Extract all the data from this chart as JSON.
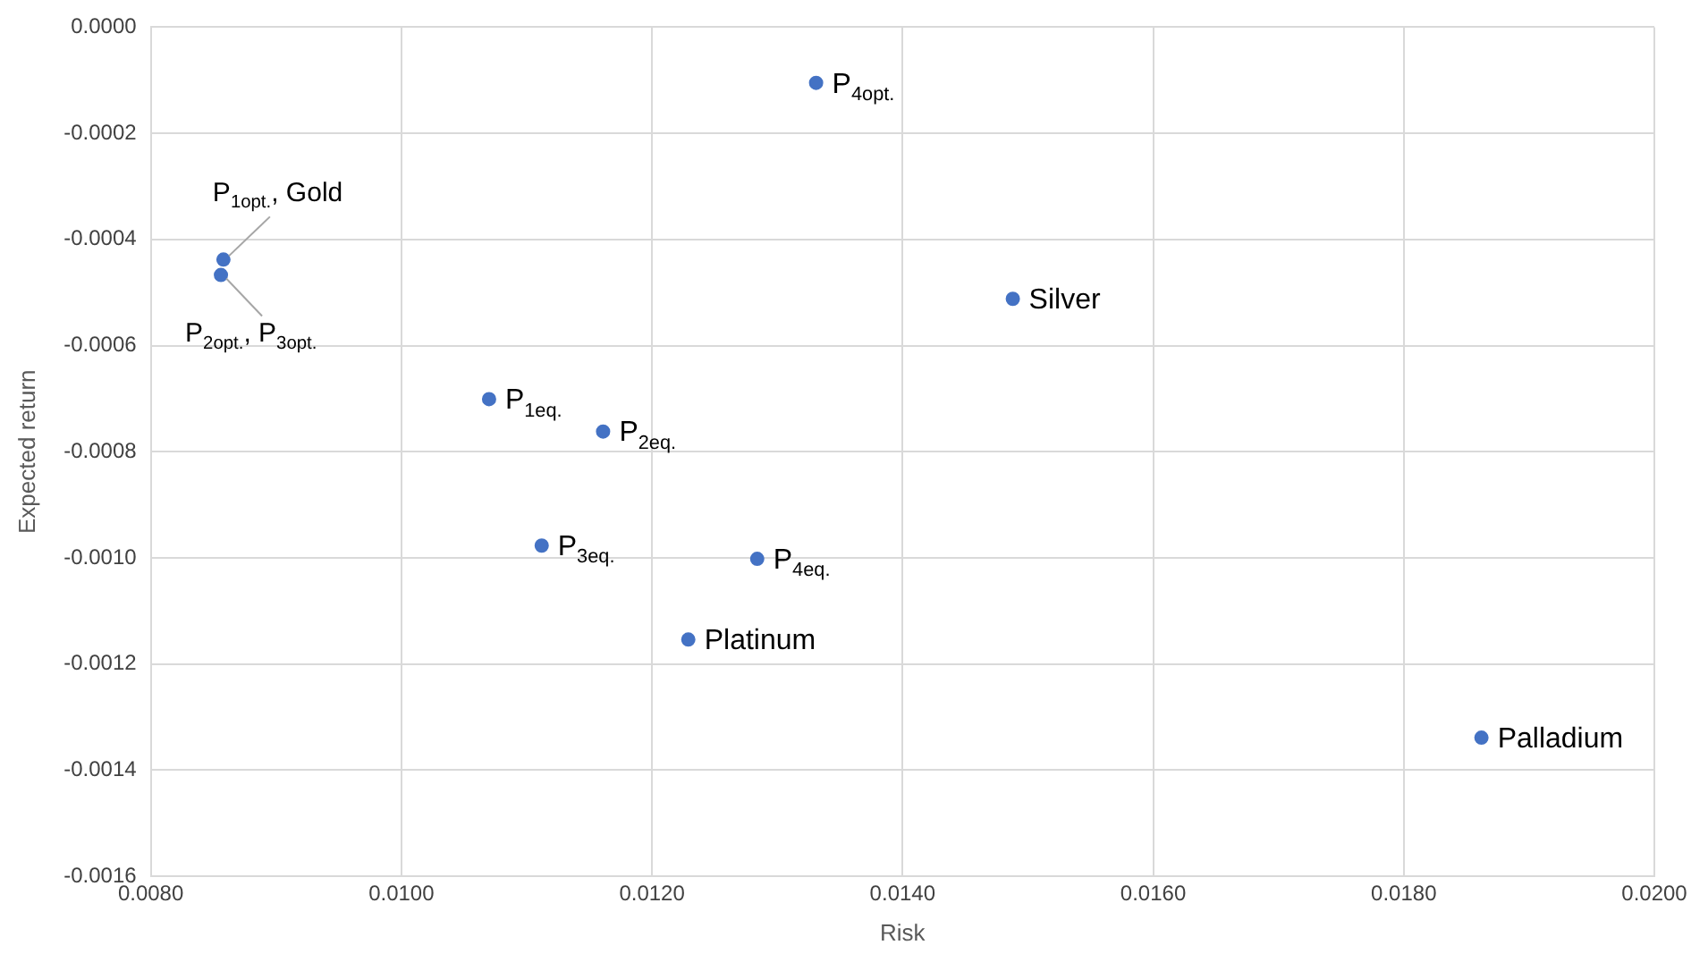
{
  "chart_data": {
    "type": "scatter",
    "xlabel": "Risk",
    "ylabel": "Expected return",
    "x": [
      0.01331,
      0.00858,
      0.00856,
      0.01488,
      0.0107,
      0.01161,
      0.01112,
      0.01284,
      0.01229,
      0.01862
    ],
    "values": [
      -0.000105,
      -0.000438,
      -0.000467,
      -0.000512,
      -0.000701,
      -0.000762,
      -0.000977,
      -0.001002,
      -0.001154,
      -0.001339
    ],
    "color": "#4472c4",
    "marker": "circle",
    "grid": true,
    "legend": false,
    "xlim": [
      0.008,
      0.02
    ],
    "xticks": [
      {
        "value": 0.008,
        "label": "0.0080"
      },
      {
        "value": 0.01,
        "label": "0.0100"
      },
      {
        "value": 0.012,
        "label": "0.0120"
      },
      {
        "value": 0.014,
        "label": "0.0140"
      },
      {
        "value": 0.016,
        "label": "0.0160"
      },
      {
        "value": 0.018,
        "label": "0.0180"
      },
      {
        "value": 0.02,
        "label": "0.0200"
      }
    ],
    "ylim": [
      -0.0016,
      0
    ],
    "yticks": [
      {
        "value": -0.0016,
        "label": "-0.0016"
      },
      {
        "value": -0.0014,
        "label": "-0.0014"
      },
      {
        "value": -0.0012,
        "label": "-0.0012"
      },
      {
        "value": -0.001,
        "label": "-0.0010"
      },
      {
        "value": -0.0008,
        "label": "-0.0008"
      },
      {
        "value": -0.0006,
        "label": "-0.0006"
      },
      {
        "value": -0.0004,
        "label": "-0.0004"
      },
      {
        "value": -0.0002,
        "label": "-0.0002"
      },
      {
        "value": 0,
        "label": "0.0000"
      }
    ],
    "annotations": [
      {
        "text": "P$_{4opt.}$",
        "x": 0.01331,
        "y": -0.000105
      },
      {
        "text": "P$_{1opt.}$, Gold",
        "x": 0.00858,
        "y": -0.000438
      },
      {
        "text": "P$_{2opt.}$, P$_{3opt.}$",
        "x": 0.00856,
        "y": -0.000467
      },
      {
        "text": "Silver",
        "x": 0.01488,
        "y": -0.000512
      },
      {
        "text": "P$_{1eq.}$",
        "x": 0.0107,
        "y": -0.000701
      },
      {
        "text": "P$_{2eq.}$",
        "x": 0.01161,
        "y": -0.000762
      },
      {
        "text": "P$_{3eq.}$",
        "x": 0.01112,
        "y": -0.000977
      },
      {
        "text": "P$_{4eq.}$",
        "x": 0.01284,
        "y": -0.001002
      },
      {
        "text": "Platinum",
        "x": 0.01229,
        "y": -0.001154
      },
      {
        "text": "Palladium",
        "x": 0.01862,
        "y": -0.001339
      }
    ]
  }
}
